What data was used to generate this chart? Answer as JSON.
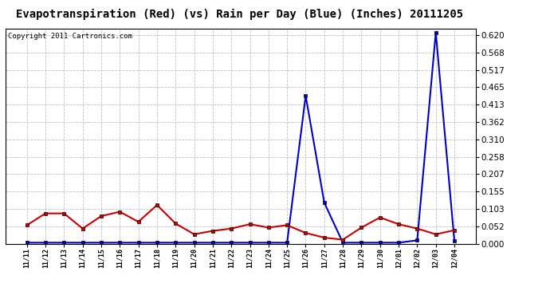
{
  "title": "Evapotranspiration (Red) (vs) Rain per Day (Blue) (Inches) 20111205",
  "copyright": "Copyright 2011 Cartronics.com",
  "x_labels": [
    "11/11",
    "11/12",
    "11/13",
    "11/14",
    "11/15",
    "11/16",
    "11/17",
    "11/18",
    "11/19",
    "11/20",
    "11/21",
    "11/22",
    "11/23",
    "11/24",
    "11/25",
    "11/26",
    "11/27",
    "11/28",
    "11/29",
    "11/30",
    "12/01",
    "12/02",
    "12/03",
    "12/04"
  ],
  "red_values": [
    0.055,
    0.09,
    0.09,
    0.045,
    0.082,
    0.095,
    0.065,
    0.115,
    0.06,
    0.028,
    0.038,
    0.045,
    0.058,
    0.048,
    0.055,
    0.032,
    0.018,
    0.012,
    0.048,
    0.078,
    0.058,
    0.045,
    0.028,
    0.04
  ],
  "blue_values": [
    0.003,
    0.003,
    0.003,
    0.003,
    0.003,
    0.003,
    0.003,
    0.003,
    0.003,
    0.003,
    0.003,
    0.003,
    0.003,
    0.003,
    0.003,
    0.44,
    0.122,
    0.003,
    0.003,
    0.003,
    0.003,
    0.01,
    0.628,
    0.008
  ],
  "y_ticks": [
    0.0,
    0.052,
    0.103,
    0.155,
    0.207,
    0.258,
    0.31,
    0.362,
    0.413,
    0.465,
    0.517,
    0.568,
    0.62
  ],
  "y_max": 0.64,
  "bg_color": "#ffffff",
  "plot_bg_color": "#ffffff",
  "grid_color": "#c0c0c0",
  "red_color": "#cc0000",
  "blue_color": "#0000cc",
  "title_fontsize": 10,
  "copyright_fontsize": 6.5
}
